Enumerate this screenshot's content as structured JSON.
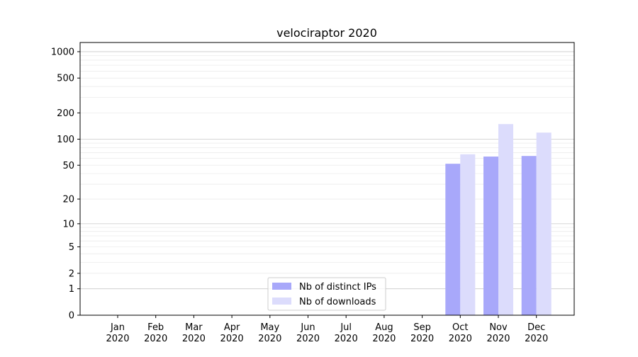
{
  "chart_data": {
    "type": "bar",
    "title": "velociraptor 2020",
    "xlabel": "",
    "ylabel": "",
    "yscale": "symlog (log of 1+y)",
    "ylim": [
      0,
      1300
    ],
    "grid": true,
    "legend_position": "bottom-center",
    "categories": [
      "Jan\n2020",
      "Feb\n2020",
      "Mar\n2020",
      "Apr\n2020",
      "May\n2020",
      "Jun\n2020",
      "Jul\n2020",
      "Aug\n2020",
      "Sep\n2020",
      "Oct\n2020",
      "Nov\n2020",
      "Dec\n2020"
    ],
    "yticks": [
      0,
      1,
      2,
      5,
      10,
      20,
      50,
      100,
      200,
      500,
      1000
    ],
    "series": [
      {
        "name": "Nb of distinct IPs",
        "color": "#a8a8fa",
        "values": [
          0,
          0,
          0,
          0,
          0,
          0,
          0,
          0,
          0,
          52,
          63,
          64
        ]
      },
      {
        "name": "Nb of downloads",
        "color": "#dcdcfc",
        "values": [
          0,
          0,
          0,
          0,
          0,
          0,
          0,
          0,
          0,
          67,
          149,
          119
        ]
      }
    ]
  }
}
